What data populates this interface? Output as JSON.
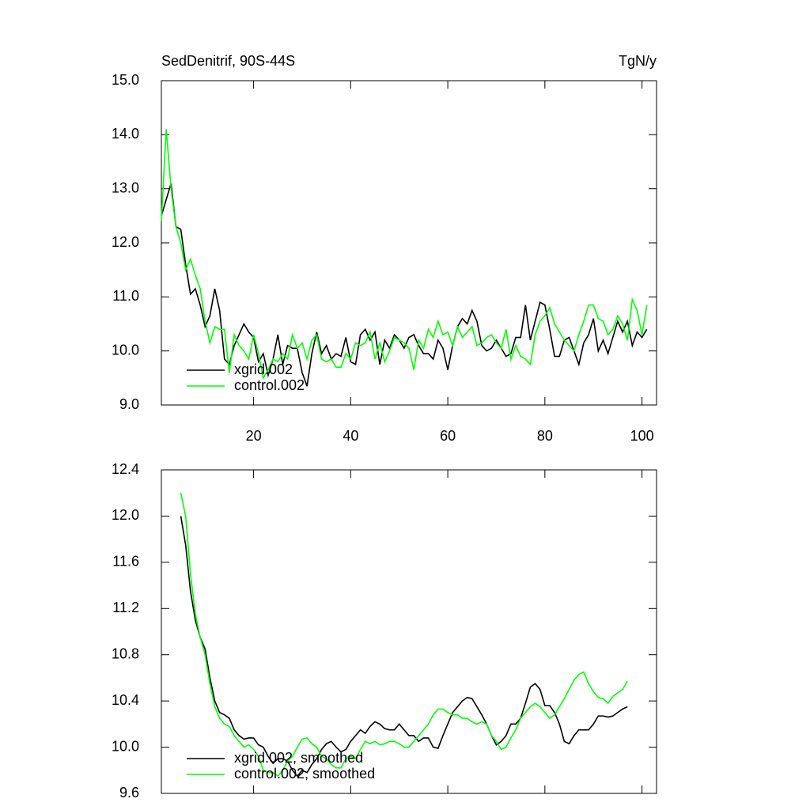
{
  "chart_data": [
    {
      "type": "line",
      "title": "SedDenitrif, 90S-44S",
      "units": "TgN/y",
      "x": [
        1,
        2,
        3,
        4,
        5,
        6,
        7,
        8,
        9,
        10,
        11,
        12,
        13,
        14,
        15,
        16,
        17,
        18,
        19,
        20,
        21,
        22,
        23,
        24,
        25,
        26,
        27,
        28,
        29,
        30,
        31,
        32,
        33,
        34,
        35,
        36,
        37,
        38,
        39,
        40,
        41,
        42,
        43,
        44,
        45,
        46,
        47,
        48,
        49,
        50,
        51,
        52,
        53,
        54,
        55,
        56,
        57,
        58,
        59,
        60,
        61,
        62,
        63,
        64,
        65,
        66,
        67,
        68,
        69,
        70,
        71,
        72,
        73,
        74,
        75,
        76,
        77,
        78,
        79,
        80,
        81,
        82,
        83,
        84,
        85,
        86,
        87,
        88,
        89,
        90,
        91,
        92,
        93,
        94,
        95,
        96,
        97,
        98,
        99,
        100,
        101
      ],
      "series": [
        {
          "name": "xgrid.002",
          "color": "#000000",
          "values": [
            12.5,
            12.8,
            13.1,
            12.3,
            12.25,
            11.6,
            11.05,
            11.15,
            10.85,
            10.45,
            10.65,
            11.15,
            10.75,
            9.85,
            9.75,
            10.1,
            10.3,
            10.5,
            10.35,
            10.25,
            9.8,
            9.95,
            9.55,
            9.85,
            10.3,
            9.75,
            10.1,
            10.05,
            10.05,
            9.6,
            9.35,
            9.95,
            10.35,
            9.95,
            10.1,
            9.85,
            9.95,
            9.9,
            10.25,
            9.8,
            9.75,
            10.3,
            10.4,
            10.2,
            10.35,
            9.75,
            10.2,
            10.05,
            10.3,
            10.2,
            10.05,
            10.25,
            10.3,
            10.1,
            9.95,
            9.95,
            9.85,
            10.2,
            10.05,
            9.65,
            10.1,
            10.45,
            10.6,
            10.5,
            10.75,
            10.55,
            10.1,
            10.0,
            10.05,
            10.2,
            10.05,
            9.9,
            9.95,
            10.25,
            10.25,
            10.85,
            10.2,
            10.55,
            10.9,
            10.85,
            10.4,
            9.9,
            9.9,
            10.2,
            10.25,
            10.0,
            9.75,
            10.15,
            10.3,
            10.6,
            10.0,
            10.2,
            9.95,
            10.25,
            10.55,
            10.35,
            10.55,
            10.1,
            10.35,
            10.25,
            10.4
          ]
        },
        {
          "name": "control.002",
          "color": "#00ff00",
          "values": [
            12.4,
            14.1,
            13.0,
            12.3,
            12.0,
            11.5,
            11.7,
            11.4,
            11.15,
            10.55,
            10.15,
            10.45,
            10.4,
            10.4,
            9.6,
            10.3,
            10.1,
            10.0,
            9.85,
            10.3,
            9.95,
            9.5,
            9.65,
            9.85,
            9.8,
            9.95,
            9.85,
            10.3,
            10.05,
            10.15,
            9.85,
            10.2,
            10.3,
            9.85,
            9.8,
            9.85,
            9.7,
            9.7,
            9.95,
            9.85,
            10.15,
            10.1,
            10.15,
            10.35,
            9.85,
            10.15,
            9.8,
            10.0,
            10.25,
            10.2,
            10.15,
            10.05,
            9.65,
            10.2,
            10.05,
            10.4,
            10.25,
            10.55,
            10.3,
            10.35,
            10.1,
            10.45,
            10.25,
            10.35,
            10.45,
            10.1,
            10.15,
            10.25,
            10.3,
            10.15,
            10.05,
            10.4,
            9.85,
            10.1,
            9.9,
            9.85,
            9.75,
            10.3,
            10.55,
            10.65,
            10.8,
            10.5,
            10.35,
            10.2,
            10.1,
            10.0,
            10.3,
            10.55,
            10.85,
            10.85,
            10.6,
            10.55,
            10.3,
            10.4,
            10.65,
            10.5,
            10.2,
            10.95,
            10.75,
            10.3,
            10.85
          ]
        }
      ],
      "xlim": [
        1,
        103
      ],
      "xticks": [
        20,
        40,
        60,
        80,
        100
      ],
      "ylim": [
        9,
        15
      ],
      "yticks": [
        {
          "value": 9,
          "label": "9.0"
        },
        {
          "value": 10,
          "label": "10.0"
        },
        {
          "value": 11,
          "label": "11.0"
        },
        {
          "value": 12,
          "label": "12.0"
        },
        {
          "value": 13,
          "label": "13.0"
        },
        {
          "value": 14,
          "label": "14.0"
        },
        {
          "value": 15,
          "label": "15.0"
        }
      ],
      "legend": "lower left"
    },
    {
      "type": "line",
      "x": [
        5,
        6,
        7,
        8,
        9,
        10,
        11,
        12,
        13,
        14,
        15,
        16,
        17,
        18,
        19,
        20,
        21,
        22,
        23,
        24,
        25,
        26,
        27,
        28,
        29,
        30,
        31,
        32,
        33,
        34,
        35,
        36,
        37,
        38,
        39,
        40,
        41,
        42,
        43,
        44,
        45,
        46,
        47,
        48,
        49,
        50,
        51,
        52,
        53,
        54,
        55,
        56,
        57,
        58,
        59,
        60,
        61,
        62,
        63,
        64,
        65,
        66,
        67,
        68,
        69,
        70,
        71,
        72,
        73,
        74,
        75,
        76,
        77,
        78,
        79,
        80,
        81,
        82,
        83,
        84,
        85,
        86,
        87,
        88,
        89,
        90,
        91,
        92,
        93,
        94,
        95,
        96,
        97
      ],
      "series": [
        {
          "name": "xgrid.002, smoothed",
          "color": "#000000",
          "values": [
            12.0,
            11.75,
            11.35,
            11.1,
            10.95,
            10.85,
            10.6,
            10.4,
            10.3,
            10.28,
            10.25,
            10.15,
            10.1,
            10.07,
            10.08,
            10.08,
            10.02,
            10.0,
            9.92,
            9.86,
            9.9,
            9.9,
            9.88,
            9.8,
            9.75,
            9.8,
            9.78,
            9.85,
            9.9,
            9.98,
            10.03,
            10.05,
            10.0,
            9.96,
            9.98,
            10.05,
            10.1,
            10.15,
            10.12,
            10.18,
            10.22,
            10.2,
            10.16,
            10.15,
            10.15,
            10.2,
            10.15,
            10.1,
            10.1,
            10.05,
            10.08,
            10.08,
            10.0,
            9.99,
            10.1,
            10.2,
            10.3,
            10.35,
            10.4,
            10.43,
            10.42,
            10.35,
            10.28,
            10.2,
            10.1,
            10.02,
            10.05,
            10.1,
            10.2,
            10.2,
            10.25,
            10.38,
            10.52,
            10.55,
            10.5,
            10.36,
            10.36,
            10.3,
            10.2,
            10.05,
            10.03,
            10.1,
            10.15,
            10.15,
            10.15,
            10.2,
            10.27,
            10.27,
            10.26,
            10.27,
            10.3,
            10.33,
            10.35
          ]
        },
        {
          "name": "control.002, smoothed",
          "color": "#00ff00",
          "values": [
            12.2,
            12.0,
            11.5,
            11.15,
            10.95,
            10.8,
            10.55,
            10.35,
            10.25,
            10.2,
            10.18,
            10.1,
            10.05,
            10.0,
            10.02,
            9.98,
            9.92,
            9.8,
            9.78,
            9.78,
            9.75,
            9.8,
            9.88,
            9.92,
            10.0,
            10.07,
            10.08,
            10.03,
            10.0,
            9.92,
            9.9,
            9.85,
            9.82,
            9.82,
            9.9,
            9.92,
            9.9,
            9.98,
            10.05,
            10.03,
            10.05,
            10.02,
            10.03,
            10.05,
            10.05,
            10.03,
            10.0,
            10.0,
            10.05,
            10.1,
            10.15,
            10.2,
            10.28,
            10.33,
            10.33,
            10.3,
            10.28,
            10.28,
            10.25,
            10.25,
            10.22,
            10.2,
            10.22,
            10.2,
            10.1,
            10.05,
            9.98,
            10.0,
            10.08,
            10.15,
            10.25,
            10.3,
            10.35,
            10.38,
            10.35,
            10.3,
            10.25,
            10.28,
            10.35,
            10.42,
            10.5,
            10.58,
            10.63,
            10.65,
            10.55,
            10.48,
            10.43,
            10.42,
            10.38,
            10.44,
            10.47,
            10.5,
            10.57
          ]
        }
      ],
      "xlim": [
        1,
        103
      ],
      "xticks": [
        20,
        40,
        60,
        80,
        100
      ],
      "ylim": [
        9.6,
        12.4
      ],
      "yticks": [
        9.6,
        {
          "value": 10,
          "label": "10.0"
        },
        10.4,
        10.8,
        11.2,
        11.6,
        {
          "value": 12,
          "label": "12.0"
        },
        12.4
      ],
      "legend": "lower left"
    }
  ]
}
